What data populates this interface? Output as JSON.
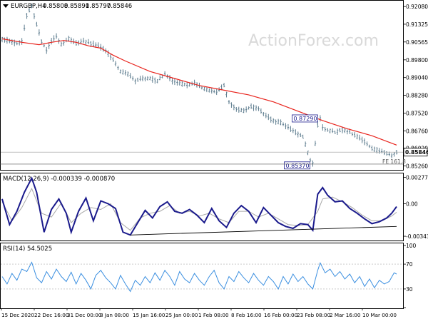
{
  "watermark": "ActionForex.com",
  "colors": {
    "background": "#ffffff",
    "border": "#000000",
    "price_bars": "#5e7d8f",
    "ma_line": "#e8231c",
    "macd_line": "#1a1a8c",
    "signal_line": "#a8a8a8",
    "rsi_line": "#3b8fe0",
    "support_line": "#000000",
    "watermark": "#d9d9d9"
  },
  "chart_data": [
    {
      "type": "bar",
      "panel": "price",
      "title": "EURGBP,H4",
      "ohlc": {
        "open": "0.85808",
        "high": "0.85891",
        "low": "0.85797",
        "close": "0.85846"
      },
      "ylim": [
        0.8515,
        0.9227
      ],
      "y_ticks": [
        "0.92080",
        "0.91325",
        "0.90565",
        "0.89800",
        "0.89040",
        "0.88280",
        "0.87520",
        "0.86760",
        "0.86020",
        "0.85260"
      ],
      "current_price": "0.85846",
      "annotations": [
        {
          "text": "0.87290",
          "price": 0.8729,
          "x_index": 128
        },
        {
          "text": "0.85370",
          "price": 0.8537,
          "x_index": 126
        },
        {
          "text": "FE 161.8",
          "price": 0.8535,
          "x_index": 155
        }
      ],
      "overlay": {
        "type": "line",
        "name": "MA",
        "points": [
          [
            0,
            0.907
          ],
          [
            8,
            0.9055
          ],
          [
            15,
            0.9045
          ],
          [
            20,
            0.9055
          ],
          [
            25,
            0.9063
          ],
          [
            30,
            0.9055
          ],
          [
            35,
            0.904
          ],
          [
            40,
            0.903
          ],
          [
            45,
            0.9
          ],
          [
            50,
            0.8975
          ],
          [
            60,
            0.893
          ],
          [
            70,
            0.89
          ],
          [
            80,
            0.887
          ],
          [
            90,
            0.885
          ],
          [
            100,
            0.883
          ],
          [
            110,
            0.88
          ],
          [
            120,
            0.876
          ],
          [
            130,
            0.872
          ],
          [
            140,
            0.8685
          ],
          [
            150,
            0.8655
          ],
          [
            160,
            0.8615
          ]
        ]
      },
      "price_path": [
        [
          0,
          0.907
        ],
        [
          3,
          0.906
        ],
        [
          6,
          0.905
        ],
        [
          8,
          0.906
        ],
        [
          10,
          0.917
        ],
        [
          12,
          0.921
        ],
        [
          14,
          0.913
        ],
        [
          16,
          0.906
        ],
        [
          18,
          0.902
        ],
        [
          20,
          0.906
        ],
        [
          22,
          0.908
        ],
        [
          24,
          0.9045
        ],
        [
          27,
          0.907
        ],
        [
          30,
          0.905
        ],
        [
          33,
          0.906
        ],
        [
          36,
          0.905
        ],
        [
          39,
          0.904
        ],
        [
          42,
          0.902
        ],
        [
          45,
          0.898
        ],
        [
          48,
          0.893
        ],
        [
          51,
          0.892
        ],
        [
          54,
          0.889
        ],
        [
          57,
          0.89
        ],
        [
          60,
          0.89
        ],
        [
          63,
          0.889
        ],
        [
          66,
          0.892
        ],
        [
          69,
          0.889
        ],
        [
          72,
          0.888
        ],
        [
          75,
          0.887
        ],
        [
          78,
          0.888
        ],
        [
          81,
          0.886
        ],
        [
          84,
          0.885
        ],
        [
          87,
          0.884
        ],
        [
          90,
          0.887
        ],
        [
          92,
          0.88
        ],
        [
          95,
          0.877
        ],
        [
          98,
          0.876
        ],
        [
          101,
          0.878
        ],
        [
          104,
          0.877
        ],
        [
          107,
          0.874
        ],
        [
          110,
          0.872
        ],
        [
          113,
          0.871
        ],
        [
          116,
          0.869
        ],
        [
          119,
          0.867
        ],
        [
          122,
          0.865
        ],
        [
          125,
          0.855
        ],
        [
          126,
          0.8537
        ],
        [
          128,
          0.87
        ],
        [
          129,
          0.8729
        ],
        [
          130,
          0.869
        ],
        [
          132,
          0.868
        ],
        [
          135,
          0.867
        ],
        [
          138,
          0.868
        ],
        [
          141,
          0.867
        ],
        [
          144,
          0.865
        ],
        [
          147,
          0.863
        ],
        [
          150,
          0.86
        ],
        [
          153,
          0.859
        ],
        [
          156,
          0.858
        ],
        [
          158,
          0.857
        ],
        [
          160,
          0.8585
        ]
      ]
    },
    {
      "type": "line",
      "panel": "macd",
      "title": "MACD(12,26,9) -0.000339 -0.000870",
      "ylim": [
        -0.00373,
        0.00305
      ],
      "y_ticks": [
        "0.002777",
        "0.00",
        "-0.003433"
      ],
      "series": [
        {
          "points": [
            [
              0,
              0.0005
            ],
            [
              3,
              -0.0022
            ],
            [
              6,
              -0.0008
            ],
            [
              9,
              0.0012
            ],
            [
              12,
              0.0027
            ],
            [
              14,
              0.0012
            ],
            [
              17,
              -0.003
            ],
            [
              20,
              -0.0006
            ],
            [
              23,
              0.0005
            ],
            [
              26,
              -0.001
            ],
            [
              28,
              -0.003
            ],
            [
              31,
              -0.0008
            ],
            [
              34,
              0.0006
            ],
            [
              37,
              -0.0018
            ],
            [
              40,
              0.0003
            ],
            [
              43,
              0.0
            ],
            [
              46,
              -0.0005
            ],
            [
              49,
              -0.003
            ],
            [
              52,
              -0.0033
            ],
            [
              55,
              -0.002
            ],
            [
              58,
              -0.0007
            ],
            [
              61,
              -0.0015
            ],
            [
              64,
              -0.0003
            ],
            [
              67,
              0.0002
            ],
            [
              70,
              -0.0008
            ],
            [
              73,
              -0.001
            ],
            [
              76,
              -0.0006
            ],
            [
              79,
              -0.0012
            ],
            [
              82,
              -0.002
            ],
            [
              85,
              -0.0005
            ],
            [
              88,
              -0.0018
            ],
            [
              91,
              -0.0025
            ],
            [
              94,
              -0.001
            ],
            [
              97,
              -0.0002
            ],
            [
              100,
              -0.0008
            ],
            [
              103,
              -0.002
            ],
            [
              106,
              -0.0004
            ],
            [
              109,
              -0.0012
            ],
            [
              112,
              -0.002
            ],
            [
              115,
              -0.0024
            ],
            [
              118,
              -0.0026
            ],
            [
              121,
              -0.0021
            ],
            [
              124,
              -0.0022
            ],
            [
              126,
              -0.0028
            ],
            [
              128,
              0.001
            ],
            [
              130,
              0.0017
            ],
            [
              132,
              0.0009
            ],
            [
              135,
              0.0002
            ],
            [
              138,
              0.0003
            ],
            [
              141,
              -0.0005
            ],
            [
              144,
              -0.001
            ],
            [
              147,
              -0.0016
            ],
            [
              150,
              -0.0021
            ],
            [
              153,
              -0.0019
            ],
            [
              156,
              -0.0015
            ],
            [
              158,
              -0.001
            ],
            [
              160,
              -0.0003
            ]
          ]
        },
        {
          "points": [
            [
              0,
              0.0002
            ],
            [
              4,
              -0.0018
            ],
            [
              8,
              -0.0004
            ],
            [
              12,
              0.0016
            ],
            [
              16,
              -0.001
            ],
            [
              20,
              -0.0014
            ],
            [
              24,
              0.0001
            ],
            [
              28,
              -0.002
            ],
            [
              32,
              -0.001
            ],
            [
              36,
              -0.0004
            ],
            [
              40,
              -0.0006
            ],
            [
              44,
              0.0
            ],
            [
              48,
              -0.002
            ],
            [
              52,
              -0.0028
            ],
            [
              56,
              -0.0015
            ],
            [
              60,
              -0.001
            ],
            [
              64,
              -0.0008
            ],
            [
              68,
              -0.0002
            ],
            [
              72,
              -0.001
            ],
            [
              76,
              -0.0008
            ],
            [
              80,
              -0.0013
            ],
            [
              84,
              -0.001
            ],
            [
              88,
              -0.0016
            ],
            [
              92,
              -0.002
            ],
            [
              96,
              -0.0008
            ],
            [
              100,
              -0.0008
            ],
            [
              104,
              -0.0014
            ],
            [
              108,
              -0.001
            ],
            [
              112,
              -0.0016
            ],
            [
              116,
              -0.0022
            ],
            [
              120,
              -0.0023
            ],
            [
              124,
              -0.0022
            ],
            [
              128,
              -0.0008
            ],
            [
              130,
              0.0005
            ],
            [
              134,
              0.0007
            ],
            [
              138,
              0.0002
            ],
            [
              142,
              -0.0004
            ],
            [
              146,
              -0.0012
            ],
            [
              150,
              -0.0018
            ],
            [
              154,
              -0.0018
            ],
            [
              158,
              -0.0013
            ],
            [
              160,
              -0.0009
            ]
          ]
        }
      ],
      "trendline": [
        [
          52,
          -0.0033
        ],
        [
          160,
          -0.0024
        ]
      ]
    },
    {
      "type": "line",
      "panel": "rsi",
      "title": "RSI(14) 54.5025",
      "ylim": [
        0,
        100
      ],
      "y_ticks": [
        "100",
        "70",
        "30",
        "0"
      ],
      "series": [
        {
          "points": [
            [
              0,
              50
            ],
            [
              2,
              38
            ],
            [
              4,
              55
            ],
            [
              6,
              44
            ],
            [
              8,
              62
            ],
            [
              10,
              58
            ],
            [
              12,
              73
            ],
            [
              14,
              48
            ],
            [
              16,
              40
            ],
            [
              18,
              58
            ],
            [
              20,
              46
            ],
            [
              22,
              62
            ],
            [
              24,
              50
            ],
            [
              26,
              42
            ],
            [
              28,
              57
            ],
            [
              30,
              38
            ],
            [
              32,
              55
            ],
            [
              34,
              44
            ],
            [
              36,
              30
            ],
            [
              38,
              52
            ],
            [
              40,
              60
            ],
            [
              42,
              48
            ],
            [
              44,
              40
            ],
            [
              46,
              30
            ],
            [
              48,
              52
            ],
            [
              50,
              38
            ],
            [
              52,
              26
            ],
            [
              54,
              44
            ],
            [
              56,
              36
            ],
            [
              58,
              50
            ],
            [
              60,
              40
            ],
            [
              62,
              56
            ],
            [
              64,
              44
            ],
            [
              66,
              60
            ],
            [
              68,
              50
            ],
            [
              70,
              36
            ],
            [
              72,
              58
            ],
            [
              74,
              46
            ],
            [
              76,
              40
            ],
            [
              78,
              55
            ],
            [
              80,
              44
            ],
            [
              82,
              36
            ],
            [
              84,
              50
            ],
            [
              86,
              60
            ],
            [
              88,
              40
            ],
            [
              90,
              30
            ],
            [
              92,
              50
            ],
            [
              94,
              42
            ],
            [
              96,
              58
            ],
            [
              98,
              48
            ],
            [
              100,
              40
            ],
            [
              102,
              55
            ],
            [
              104,
              44
            ],
            [
              106,
              36
            ],
            [
              108,
              50
            ],
            [
              110,
              42
            ],
            [
              112,
              30
            ],
            [
              114,
              50
            ],
            [
              116,
              38
            ],
            [
              118,
              54
            ],
            [
              120,
              42
            ],
            [
              122,
              50
            ],
            [
              124,
              38
            ],
            [
              126,
              30
            ],
            [
              128,
              60
            ],
            [
              129,
              72
            ],
            [
              131,
              56
            ],
            [
              133,
              62
            ],
            [
              135,
              50
            ],
            [
              137,
              58
            ],
            [
              139,
              46
            ],
            [
              141,
              54
            ],
            [
              143,
              40
            ],
            [
              145,
              50
            ],
            [
              147,
              34
            ],
            [
              149,
              46
            ],
            [
              151,
              32
            ],
            [
              153,
              44
            ],
            [
              155,
              38
            ],
            [
              157,
              42
            ],
            [
              159,
              56
            ],
            [
              160,
              54
            ]
          ]
        }
      ]
    }
  ],
  "x_axis": {
    "labels": [
      "15 Dec 2020",
      "22 Dec 16:00",
      "31 Dec 00:00",
      "8 Jan 08:00",
      "15 Jan 16:00",
      "25 Jan 00:00",
      "1 Feb 08:00",
      "8 Feb 16:00",
      "16 Feb 00:00",
      "23 Feb 08:00",
      "2 Mar 16:00",
      "10 Mar 00:00"
    ]
  }
}
